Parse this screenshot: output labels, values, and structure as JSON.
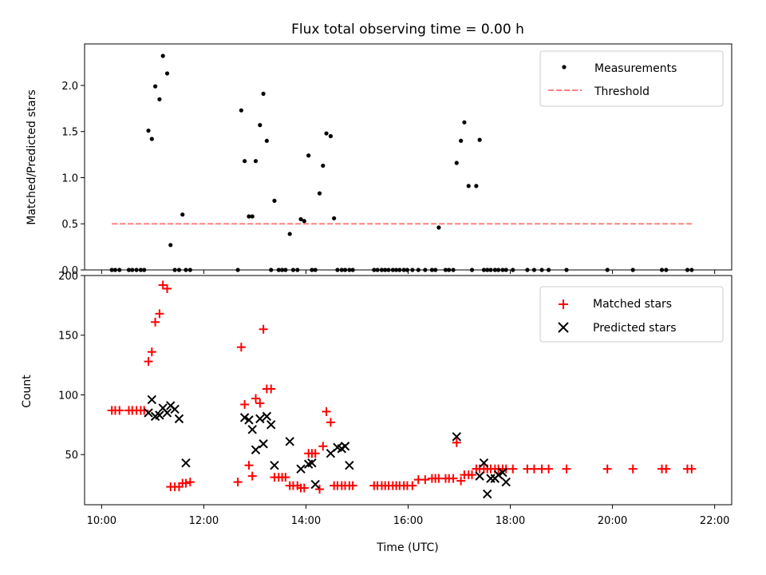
{
  "chart_data": [
    {
      "type": "scatter",
      "title": "Flux total observing time = 0.00 h",
      "xlabel": "",
      "ylabel": "Matched/Predicted stars",
      "xlim": [
        "09:40",
        "22:20"
      ],
      "ylim": [
        0,
        2.45
      ],
      "yticks": [
        "0.0",
        "0.5",
        "1.0",
        "1.5",
        "2.0"
      ],
      "grid": false,
      "legend_position": "top-right",
      "series": [
        {
          "name": "Measurements",
          "marker": "dot",
          "color": "#000000",
          "x": [
            "10:12",
            "10:16",
            "10:21",
            "10:32",
            "10:36",
            "10:41",
            "10:46",
            "10:50",
            "10:55",
            "10:59",
            "11:03",
            "11:08",
            "11:12",
            "11:17",
            "11:21",
            "11:26",
            "11:31",
            "11:35",
            "11:39",
            "11:44",
            "12:40",
            "12:44",
            "12:48",
            "12:53",
            "12:57",
            "13:01",
            "13:06",
            "13:10",
            "13:14",
            "13:19",
            "13:23",
            "13:28",
            "13:32",
            "13:36",
            "13:41",
            "13:45",
            "13:50",
            "13:54",
            "13:58",
            "14:03",
            "14:07",
            "14:11",
            "14:16",
            "14:20",
            "14:24",
            "14:29",
            "14:33",
            "14:37",
            "14:42",
            "14:46",
            "14:51",
            "14:55",
            "15:20",
            "15:24",
            "15:29",
            "15:33",
            "15:37",
            "15:42",
            "15:46",
            "15:50",
            "15:55",
            "15:59",
            "16:05",
            "16:12",
            "16:20",
            "16:28",
            "16:32",
            "16:36",
            "16:44",
            "16:48",
            "16:53",
            "16:57",
            "17:02",
            "17:06",
            "17:11",
            "17:15",
            "17:20",
            "17:24",
            "17:29",
            "17:33",
            "17:37",
            "17:42",
            "17:46",
            "17:51",
            "17:55",
            "18:03",
            "18:20",
            "18:28",
            "18:37",
            "18:45",
            "19:06",
            "19:54",
            "20:24",
            "20:58",
            "21:03",
            "21:28",
            "21:33"
          ],
          "y": [
            0,
            0,
            0,
            0,
            0,
            0,
            0,
            0,
            1.51,
            1.42,
            1.99,
            1.85,
            2.32,
            2.13,
            0.27,
            0,
            0,
            0.6,
            0,
            0,
            0,
            1.73,
            1.18,
            0.58,
            0.58,
            1.18,
            1.57,
            1.91,
            1.4,
            0,
            0.75,
            0,
            0,
            0,
            0.39,
            0,
            0,
            0.55,
            0.53,
            1.24,
            0,
            0,
            0.83,
            1.13,
            1.48,
            1.45,
            0.56,
            0,
            0,
            0,
            0,
            0,
            0,
            0,
            0,
            0,
            0,
            0,
            0,
            0,
            0,
            0,
            0,
            0,
            0,
            0,
            0,
            0.46,
            0,
            0,
            0,
            1.16,
            1.4,
            1.6,
            0.91,
            0,
            0.91,
            1.41,
            0,
            0,
            0,
            0,
            0,
            0,
            0,
            0,
            0,
            0,
            0,
            0,
            0,
            0,
            0,
            0,
            0,
            0,
            0
          ]
        },
        {
          "name": "Threshold",
          "style": "dashed",
          "color": "#ff7f7f",
          "x": [
            "10:12",
            "21:33"
          ],
          "y": [
            0.5,
            0.5
          ]
        }
      ]
    },
    {
      "type": "scatter",
      "title": "",
      "xlabel": "Time (UTC)",
      "ylabel": "Count",
      "xlim": [
        "09:40",
        "22:20"
      ],
      "ylim": [
        8,
        200
      ],
      "yticks": [
        "50",
        "100",
        "150",
        "200"
      ],
      "xticks": [
        "10:00",
        "12:00",
        "14:00",
        "16:00",
        "18:00",
        "20:00",
        "22:00"
      ],
      "grid": false,
      "legend_position": "top-right",
      "series": [
        {
          "name": "Matched stars",
          "marker": "plus",
          "color": "#ff0000",
          "x": [
            "10:12",
            "10:16",
            "10:21",
            "10:32",
            "10:36",
            "10:41",
            "10:46",
            "10:50",
            "10:55",
            "10:59",
            "11:03",
            "11:08",
            "11:12",
            "11:17",
            "11:21",
            "11:26",
            "11:31",
            "11:35",
            "11:39",
            "11:44",
            "12:40",
            "12:44",
            "12:48",
            "12:53",
            "12:57",
            "13:01",
            "13:06",
            "13:10",
            "13:14",
            "13:19",
            "13:23",
            "13:28",
            "13:32",
            "13:36",
            "13:41",
            "13:45",
            "13:50",
            "13:54",
            "13:58",
            "14:03",
            "14:07",
            "14:11",
            "14:16",
            "14:20",
            "14:24",
            "14:29",
            "14:33",
            "14:37",
            "14:42",
            "14:46",
            "14:51",
            "14:55",
            "15:20",
            "15:24",
            "15:29",
            "15:33",
            "15:37",
            "15:42",
            "15:46",
            "15:50",
            "15:55",
            "15:59",
            "16:05",
            "16:12",
            "16:20",
            "16:28",
            "16:32",
            "16:36",
            "16:44",
            "16:48",
            "16:53",
            "16:57",
            "17:02",
            "17:06",
            "17:11",
            "17:15",
            "17:20",
            "17:24",
            "17:29",
            "17:33",
            "17:37",
            "17:42",
            "17:46",
            "17:51",
            "17:55",
            "18:03",
            "18:20",
            "18:28",
            "18:37",
            "18:45",
            "19:06",
            "19:54",
            "20:24",
            "20:58",
            "21:03",
            "21:28",
            "21:33"
          ],
          "y": [
            87,
            87,
            87,
            87,
            87,
            87,
            87,
            87,
            128,
            136,
            161,
            168,
            192,
            189,
            23,
            23,
            23,
            26,
            26,
            27,
            27,
            140,
            92,
            41,
            32,
            97,
            93,
            155,
            105,
            105,
            31,
            31,
            31,
            31,
            24,
            24,
            24,
            22,
            22,
            51,
            51,
            51,
            21,
            57,
            86,
            77,
            24,
            24,
            24,
            24,
            24,
            24,
            24,
            24,
            24,
            24,
            24,
            24,
            24,
            24,
            24,
            24,
            24,
            29,
            29,
            30,
            30,
            30,
            30,
            30,
            30,
            60,
            28,
            33,
            33,
            33,
            38,
            38,
            38,
            38,
            38,
            38,
            38,
            38,
            38,
            38,
            38,
            38,
            38,
            38,
            38,
            38,
            38,
            38,
            38,
            38,
            38
          ]
        },
        {
          "name": "Predicted stars",
          "marker": "x",
          "color": "#000000",
          "x": [
            "10:55",
            "10:59",
            "11:03",
            "11:08",
            "11:12",
            "11:17",
            "11:21",
            "11:26",
            "11:31",
            "11:39",
            "12:48",
            "12:53",
            "12:57",
            "13:01",
            "13:06",
            "13:10",
            "13:14",
            "13:19",
            "13:23",
            "13:41",
            "13:54",
            "14:03",
            "14:07",
            "14:11",
            "14:29",
            "14:37",
            "14:42",
            "14:46",
            "14:51",
            "16:57",
            "17:24",
            "17:29",
            "17:33",
            "17:37",
            "17:42",
            "17:46",
            "17:51",
            "17:55"
          ],
          "y": [
            85,
            96,
            82,
            83,
            89,
            85,
            91,
            88,
            80,
            43,
            81,
            79,
            71,
            54,
            80,
            59,
            82,
            75,
            41,
            61,
            38,
            42,
            43,
            25,
            51,
            56,
            55,
            57,
            41,
            65,
            32,
            43,
            17,
            30,
            30,
            33,
            35,
            27
          ]
        }
      ]
    }
  ]
}
